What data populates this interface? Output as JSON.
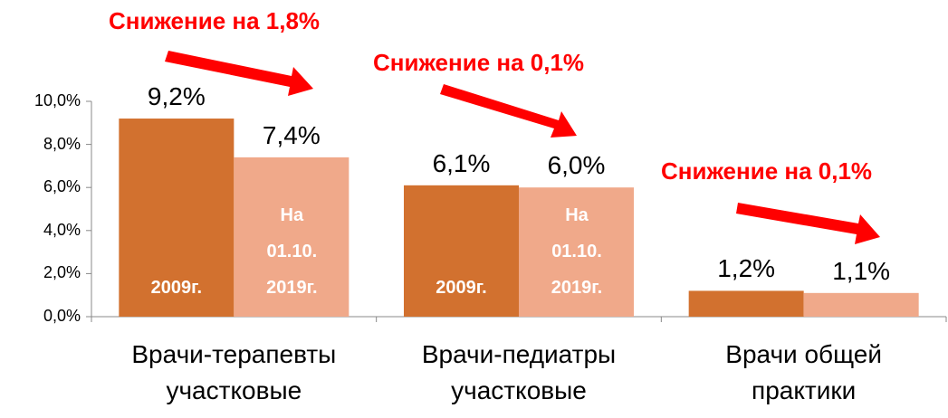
{
  "chart_data": {
    "type": "bar",
    "categories": [
      "Врачи-терапевты участковые",
      "Врачи-педиатры участковые",
      "Врачи общей практики"
    ],
    "series": [
      {
        "name": "2009г.",
        "color": "#d2712f",
        "values": [
          9.2,
          6.1,
          1.2
        ],
        "value_labels": [
          "9,2%",
          "6,1%",
          "1,2%"
        ]
      },
      {
        "name": "На 01.10. 2019г.",
        "color": "#f0a98a",
        "values": [
          7.4,
          6.0,
          1.1
        ],
        "value_labels": [
          "7,4%",
          "6,0%",
          "1,1%"
        ]
      }
    ],
    "ylim": [
      0,
      10
    ],
    "yticks": [
      {
        "value": 0,
        "label": "0,0%"
      },
      {
        "value": 2,
        "label": "2,0%"
      },
      {
        "value": 4,
        "label": "4,0%"
      },
      {
        "value": 6,
        "label": "6,0%"
      },
      {
        "value": 8,
        "label": "8,0%"
      },
      {
        "value": 10,
        "label": "10,0%"
      }
    ],
    "grid": false,
    "annotations": [
      "Снижение на 1,8%",
      "Снижение на 0,1%",
      "Снижение на 0,1%"
    ]
  }
}
